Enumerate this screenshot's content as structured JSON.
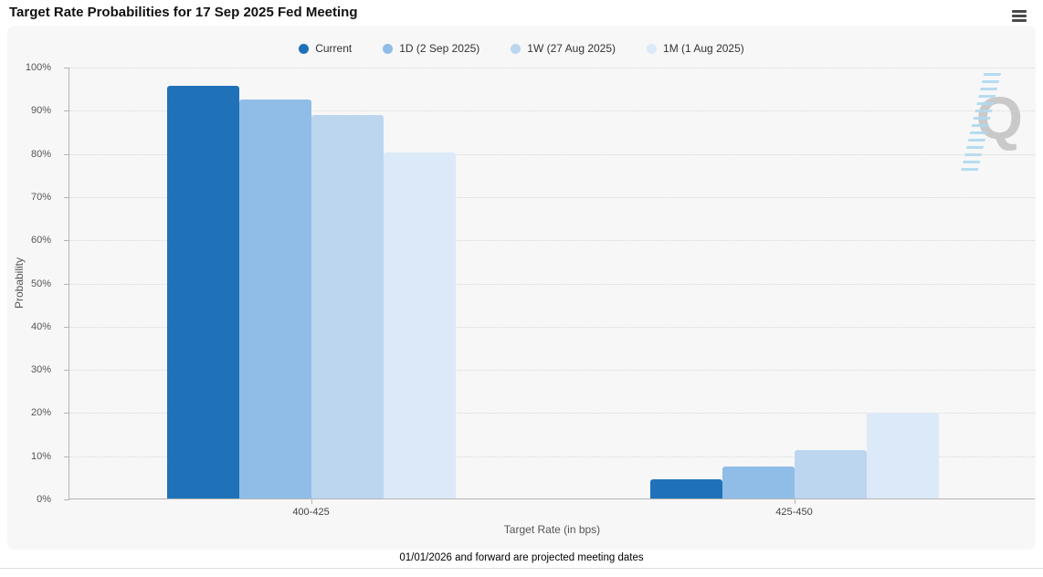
{
  "header": {
    "title": "Target Rate Probabilities for 17 Sep 2025 Fed Meeting"
  },
  "legend": [
    {
      "label": "Current",
      "color": "#1f72b8"
    },
    {
      "label": "1D (2 Sep 2025)",
      "color": "#8fbde8"
    },
    {
      "label": "1W (27 Aug 2025)",
      "color": "#bcd6f0"
    },
    {
      "label": "1M (1 Aug 2025)",
      "color": "#dce9f8"
    }
  ],
  "chart_data": {
    "type": "bar",
    "categories": [
      "400-425",
      "425-450"
    ],
    "series": [
      {
        "name": "Current",
        "color": "#1f72b8",
        "values": [
          95.5,
          4.5
        ]
      },
      {
        "name": "1D (2 Sep 2025)",
        "color": "#8fbde8",
        "values": [
          92.5,
          7.5
        ]
      },
      {
        "name": "1W (27 Aug 2025)",
        "color": "#bcd6f0",
        "values": [
          88.7,
          11.3
        ]
      },
      {
        "name": "1M (1 Aug 2025)",
        "color": "#dce9f8",
        "values": [
          80.1,
          19.9
        ]
      }
    ],
    "title": "Target Rate Probabilities for 17 Sep 2025 Fed Meeting",
    "xlabel": "Target Rate (in bps)",
    "ylabel": "Probability",
    "ylim": [
      0,
      100
    ],
    "ytick_step": 10,
    "ytick_suffix": "%",
    "grid": "dotted-horizontal",
    "legend_position": "top"
  },
  "watermark": {
    "letter": "Q"
  },
  "footer": {
    "note": "01/01/2026 and forward are projected meeting dates"
  }
}
